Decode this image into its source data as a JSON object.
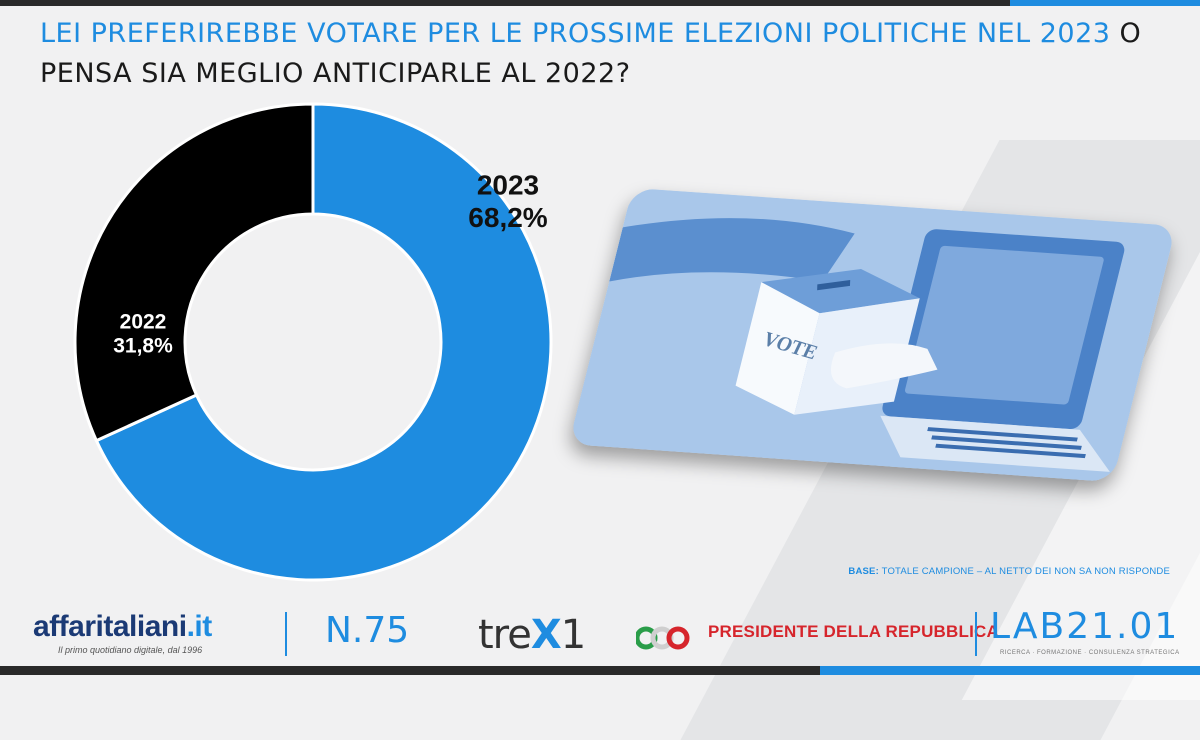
{
  "title": {
    "part1": "LEI PREFERIREBBE VOTARE PER LE PROSSIME ELEZIONI POLITICHE NEL ",
    "year_highlight": "2023",
    "part2": " O PENSA SIA MEGLIO ANTICIPARLE AL 2022?"
  },
  "colors": {
    "accent": "#1e8ce0",
    "dark": "#000000",
    "brand_red": "#d6252c",
    "brand_navy": "#1b3a75"
  },
  "chart_data": {
    "type": "pie",
    "donut": true,
    "categories": [
      "2023",
      "2022"
    ],
    "values": [
      68.2,
      31.8
    ],
    "value_labels": [
      "68,2%",
      "31,8%"
    ],
    "colors": [
      "#1e8ce0",
      "#000000"
    ]
  },
  "illustration": {
    "vote_text": "VOTE",
    "icon": "ballot-box-laptop-hand-icon"
  },
  "base_note": {
    "label": "BASE:",
    "text": " TOTALE CAMPIONE – AL NETTO DEI NON SA NON RISPONDE"
  },
  "footer": {
    "affaritaliani_name": "affaritaliani",
    "affaritaliani_tld": ".it",
    "affaritaliani_tagline": "Il primo quotidiano digitale, dal 1996",
    "issue": "N.75",
    "trex_prefix": "tre",
    "trex_x": "X",
    "trex_suffix": "1",
    "presidente": "PRESIDENTE DELLA REPUBBLICA",
    "lab_name": "LAB21.01",
    "lab_tagline": "RICERCA · FORMAZIONE · CONSULENZA STRATEGICA"
  }
}
